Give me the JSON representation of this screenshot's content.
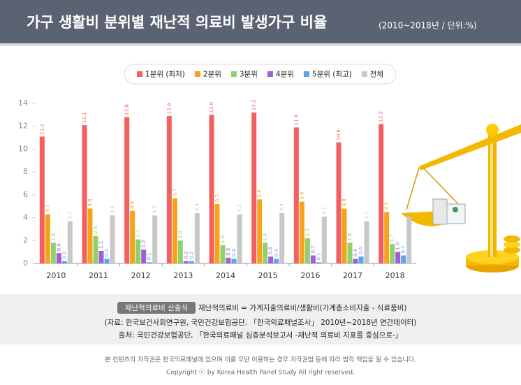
{
  "chart_data": {
    "type": "bar",
    "title": "가구 생활비 분위별 재난적 의료비 발생가구 비율",
    "subtitle": "(2010~2018년 / 단위:%)",
    "categories": [
      "2010",
      "2011",
      "2012",
      "2013",
      "2014",
      "2015",
      "2016",
      "2017",
      "2018"
    ],
    "series": [
      {
        "name": "1분위 (최저)",
        "color": "#f46060",
        "values": [
          11.1,
          12.1,
          12.8,
          12.9,
          13.0,
          13.2,
          11.9,
          10.6,
          12.2
        ],
        "value_labels": [
          "11.1",
          "12.1",
          "12.8",
          "12.9",
          "13.0",
          "13.2",
          "11.9",
          "10.6",
          "12.2"
        ]
      },
      {
        "name": "2분위",
        "color": "#f5a31a",
        "values": [
          4.3,
          4.8,
          4.6,
          5.7,
          5.2,
          5.6,
          5.4,
          4.8,
          4.5
        ]
      },
      {
        "name": "3분위",
        "color": "#8fd16b",
        "values": [
          1.8,
          2.4,
          2.1,
          2.0,
          1.6,
          1.8,
          2.2,
          1.8,
          1.7
        ],
        "value_labels": [
          "1.8",
          "2.4",
          "2.1",
          "2.0",
          "1.6",
          "1.8",
          "2.2",
          "1.8",
          "1.7"
        ]
      },
      {
        "name": "4분위",
        "color": "#a05fd6",
        "values": [
          0.9,
          1.1,
          1.2,
          0.2,
          0.5,
          0.6,
          0.7,
          0.4,
          1.0
        ],
        "value_labels": [
          "0.9",
          "1.1",
          "1.2",
          "0.2",
          "0.5",
          "0.6",
          "0.7",
          "0.4",
          "1.0"
        ]
      },
      {
        "name": "5분위 (최고)",
        "color": "#5aa4f0",
        "values": [
          0.2,
          0.4,
          0.1,
          0.2,
          0.4,
          0.4,
          0.1,
          0.6,
          0.7
        ]
      },
      {
        "name": "전체",
        "color": "#c8c8c8",
        "values": [
          3.7,
          4.2,
          4.2,
          4.4,
          4.3,
          4.4,
          4.1,
          3.7,
          4.1
        ]
      }
    ],
    "ylim": [
      0,
      14
    ],
    "yticks": [
      0,
      2,
      4,
      6,
      8,
      10,
      12,
      14
    ],
    "grid": false
  },
  "footer": {
    "badge": "재난적의료비 산출식",
    "formula": "재난적의료비 = 가계지출의료비/생활비(가계총소비지출 - 식료품비)",
    "source1": "(자료: 한국보건사회연구원, 국민건강보험공단. 「한국의료패널조사」 2010년~2018년 연간데이터)",
    "source2": "출처: 국민건강보험공단, 「한국의료패널 심층분석보고서 -재난적 의료비 지표를 중심으로-」",
    "copyright1": "본 컨텐츠의 저작권은 한국의료패널에 있으며 이를 무단 이용하는 경우 저작권법 등에 따라 법적 책임을 질 수 있습니다.",
    "copyright2": "Copyright ⓒ by Korea Health Panel Study All right reserved."
  }
}
